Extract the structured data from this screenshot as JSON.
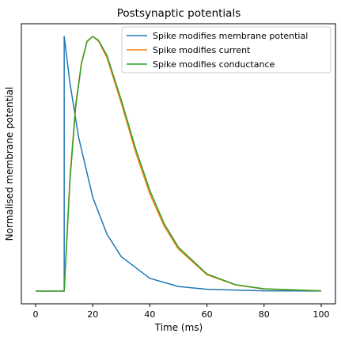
{
  "chart_data": {
    "type": "line",
    "title": "Postsynaptic potentials",
    "xlabel": "Time (ms)",
    "ylabel": "Normalised membrane potential",
    "xlim": [
      -5,
      105
    ],
    "ylim": [
      -0.05,
      1.05
    ],
    "x_ticks": [
      0,
      20,
      40,
      60,
      80,
      100
    ],
    "x_tick_labels": [
      "0",
      "20",
      "40",
      "60",
      "80",
      "100"
    ],
    "y_ticks_shown": false,
    "grid": false,
    "legend_position": "top-right",
    "series": [
      {
        "name": "Spike modifies membrane potential",
        "color": "#1f77b4",
        "x": [
          0,
          10,
          10,
          12,
          15,
          20,
          25,
          30,
          40,
          50,
          60,
          80,
          100
        ],
        "y": [
          0,
          0,
          1.0,
          0.819,
          0.607,
          0.368,
          0.223,
          0.135,
          0.05,
          0.018,
          0.007,
          0.001,
          0.0
        ]
      },
      {
        "name": "Spike modifies current",
        "color": "#ff7f0e",
        "x": [
          0,
          10,
          12,
          14,
          16,
          18,
          20,
          22,
          25,
          30,
          35,
          40,
          45,
          50,
          60,
          70,
          80,
          100
        ],
        "y": [
          0,
          0,
          0.446,
          0.731,
          0.895,
          0.982,
          1.0,
          0.982,
          0.916,
          0.738,
          0.546,
          0.381,
          0.255,
          0.165,
          0.064,
          0.024,
          0.008,
          0.001
        ]
      },
      {
        "name": "Spike modifies conductance",
        "color": "#2ca02c",
        "x": [
          0,
          10,
          12,
          14,
          16,
          18,
          20,
          22,
          25,
          30,
          35,
          40,
          45,
          50,
          60,
          70,
          80,
          100
        ],
        "y": [
          0,
          0,
          0.43,
          0.72,
          0.89,
          0.98,
          1.0,
          0.985,
          0.925,
          0.75,
          0.56,
          0.395,
          0.265,
          0.172,
          0.067,
          0.025,
          0.009,
          0.001
        ]
      }
    ]
  }
}
